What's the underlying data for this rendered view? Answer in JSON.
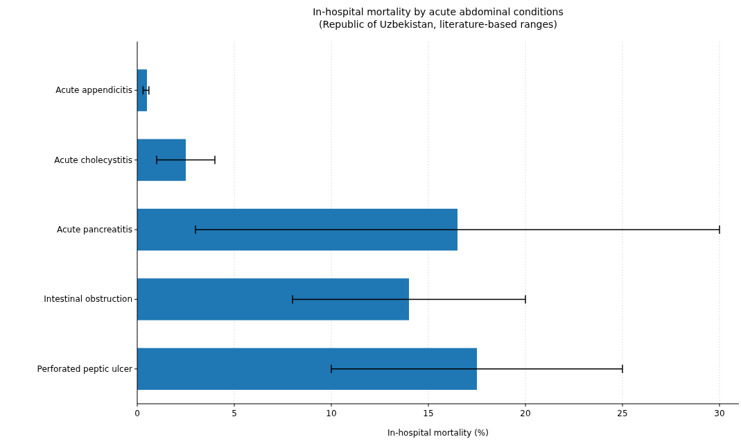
{
  "chart_data": {
    "type": "bar",
    "orientation": "horizontal",
    "title": "In-hospital mortality by acute abdominal conditions\n(Republic of Uzbekistan, literature-based ranges)",
    "xlabel": "In-hospital mortality (%)",
    "categories": [
      "Acute appendicitis",
      "Acute cholecystitis",
      "Acute pancreatitis",
      "Intestinal obstruction",
      "Perforated peptic ulcer"
    ],
    "values": [
      0.5,
      2.5,
      16.5,
      14,
      17.5
    ],
    "errors": [
      [
        0.3,
        0.6
      ],
      [
        1,
        4
      ],
      [
        3,
        30
      ],
      [
        8,
        20
      ],
      [
        10,
        25
      ]
    ],
    "color": "#1f77b4",
    "xlim": [
      0,
      31
    ],
    "xticks": [
      0,
      5,
      10,
      15,
      20,
      25,
      30
    ],
    "grid": "x"
  }
}
